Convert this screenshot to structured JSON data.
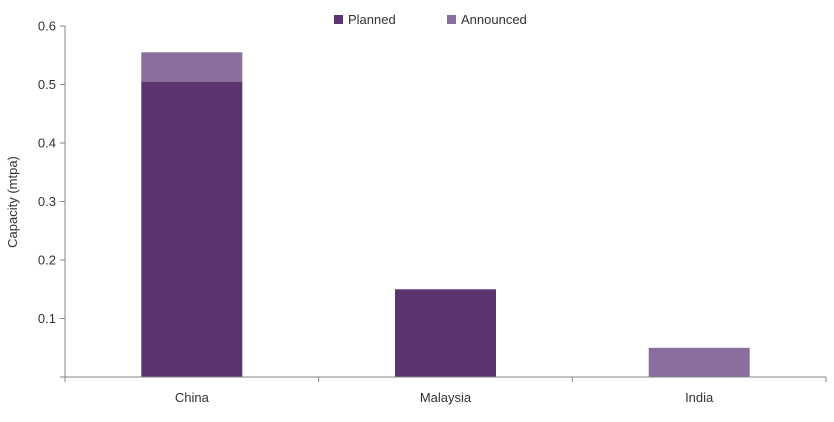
{
  "chart_data": {
    "type": "bar",
    "stacked": true,
    "title": "",
    "xlabel": "",
    "ylabel": "Capacity (mtpa)",
    "categories": [
      "China",
      "Malaysia",
      "India"
    ],
    "series": [
      {
        "name": "Planned",
        "values": [
          0.505,
          0.15,
          0.0
        ],
        "color": "#5b3470"
      },
      {
        "name": "Announced",
        "values": [
          0.05,
          0.0,
          0.05
        ],
        "color": "#8a6f9e"
      }
    ],
    "ylim": [
      0,
      0.6
    ],
    "yticks": [
      "",
      "0.1",
      "0.2",
      "0.3",
      "0.4",
      "0.5",
      "0.6"
    ],
    "grid": false,
    "legend_position": "top-center"
  }
}
